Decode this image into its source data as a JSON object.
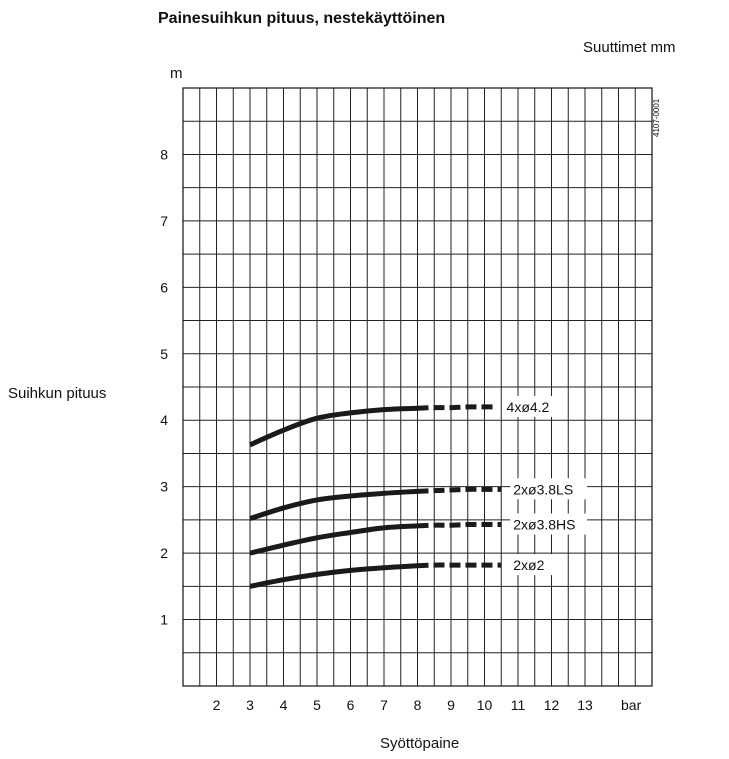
{
  "chart_data": {
    "type": "line",
    "title": "Painesuihkun pituus, nestekäyttöinen",
    "legend_title": "Suuttimet mm",
    "xlabel": "Syöttöpaine",
    "x_unit": "bar",
    "ylabel": "Suihkun pituus",
    "y_unit": "m",
    "figure_code": "4107-0001",
    "xlim": [
      1,
      15
    ],
    "ylim": [
      0,
      9
    ],
    "x_ticks": [
      2,
      3,
      4,
      5,
      6,
      7,
      8,
      9,
      10,
      11,
      12,
      13
    ],
    "y_ticks": [
      1,
      2,
      3,
      4,
      5,
      6,
      7,
      8
    ],
    "grid": true,
    "series": [
      {
        "name": "4xø4.2",
        "x": [
          3,
          4,
          5,
          6,
          7,
          8
        ],
        "y": [
          3.63,
          3.85,
          4.03,
          4.11,
          4.16,
          4.18
        ],
        "dashed_x": [
          8,
          8.5,
          9,
          9.5,
          10,
          10.3
        ],
        "dashed_y": [
          4.18,
          4.19,
          4.19,
          4.2,
          4.2,
          4.2
        ]
      },
      {
        "name": "2xø3.8LS",
        "x": [
          3,
          4,
          5,
          6,
          7,
          8
        ],
        "y": [
          2.52,
          2.68,
          2.8,
          2.86,
          2.9,
          2.93
        ],
        "dashed_x": [
          8,
          8.5,
          9,
          9.5,
          10,
          10.5
        ],
        "dashed_y": [
          2.93,
          2.94,
          2.95,
          2.96,
          2.96,
          2.96
        ]
      },
      {
        "name": "2xø3.8HS",
        "x": [
          3,
          4,
          5,
          6,
          7,
          8
        ],
        "y": [
          2.0,
          2.12,
          2.23,
          2.31,
          2.38,
          2.41
        ],
        "dashed_x": [
          8,
          8.5,
          9,
          9.5,
          10,
          10.5
        ],
        "dashed_y": [
          2.41,
          2.42,
          2.42,
          2.43,
          2.43,
          2.43
        ]
      },
      {
        "name": "2xø2",
        "x": [
          3,
          4,
          5,
          6,
          7,
          8
        ],
        "y": [
          1.5,
          1.6,
          1.68,
          1.74,
          1.78,
          1.81
        ],
        "dashed_x": [
          8,
          8.5,
          9,
          9.5,
          10,
          10.5
        ],
        "dashed_y": [
          1.81,
          1.82,
          1.82,
          1.82,
          1.82,
          1.82
        ]
      }
    ]
  }
}
